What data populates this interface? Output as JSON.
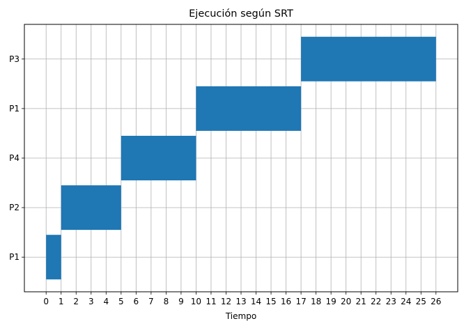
{
  "chart_data": {
    "type": "bar",
    "orientation": "gantt",
    "title": "Ejecución según SRT",
    "xlabel": "Tiempo",
    "ylabel": "",
    "x_ticks": [
      0,
      1,
      2,
      3,
      4,
      5,
      6,
      7,
      8,
      9,
      10,
      11,
      12,
      13,
      14,
      15,
      16,
      17,
      18,
      19,
      20,
      21,
      22,
      23,
      24,
      25,
      26
    ],
    "xlim": [
      -1.45,
      27.45
    ],
    "categories": [
      "P1",
      "P2",
      "P4",
      "P1",
      "P3"
    ],
    "ylim": [
      -0.7,
      4.7
    ],
    "bar_height": 0.9,
    "grid": true,
    "bar_color": "#1f77b4",
    "grid_color": "#b0b0b0",
    "segments": [
      {
        "row": 0,
        "process": "P1",
        "start": 0,
        "end": 1
      },
      {
        "row": 1,
        "process": "P2",
        "start": 1,
        "end": 5
      },
      {
        "row": 2,
        "process": "P4",
        "start": 5,
        "end": 10
      },
      {
        "row": 3,
        "process": "P1",
        "start": 10,
        "end": 17
      },
      {
        "row": 4,
        "process": "P3",
        "start": 17,
        "end": 26
      }
    ]
  }
}
